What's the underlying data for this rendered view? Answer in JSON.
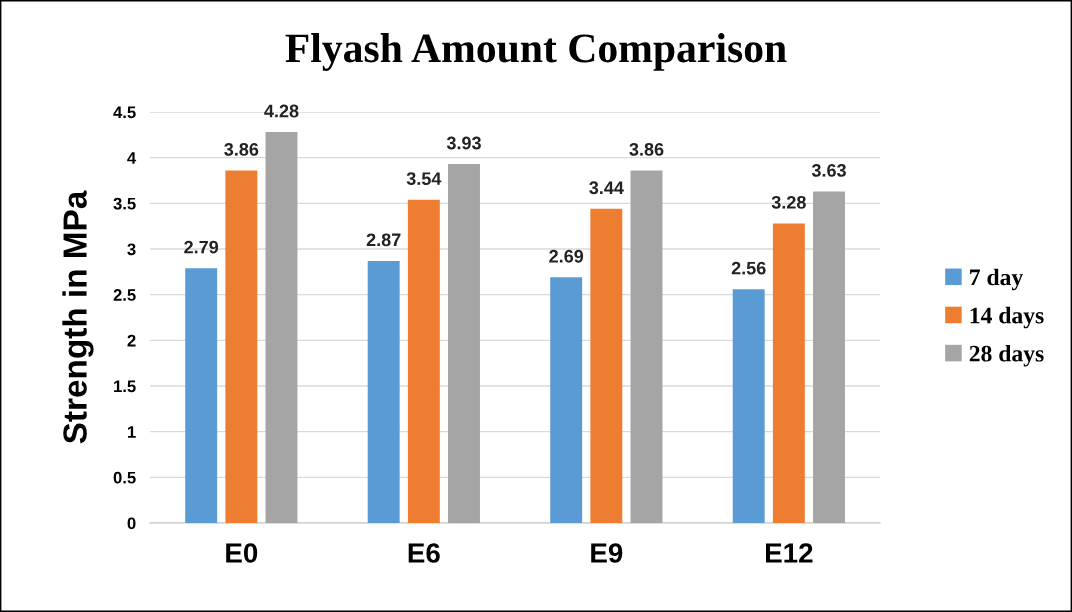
{
  "chart_data": {
    "type": "bar",
    "title": "Flyash Amount Comparison",
    "ylabel": "Strength in MPa",
    "categories": [
      "E0",
      "E6",
      "E9",
      "E12"
    ],
    "series": [
      {
        "name": "7 day",
        "color": "#5b9bd5",
        "values": [
          2.79,
          2.87,
          2.69,
          2.56
        ]
      },
      {
        "name": "14 days",
        "color": "#ed7d31",
        "values": [
          3.86,
          3.54,
          3.44,
          3.28
        ]
      },
      {
        "name": "28 days",
        "color": "#a5a5a5",
        "values": [
          4.28,
          3.93,
          3.86,
          3.63
        ]
      }
    ],
    "ylim": [
      0,
      4.5
    ],
    "yticks": [
      0,
      0.5,
      1,
      1.5,
      2,
      2.5,
      3,
      3.5,
      4,
      4.5
    ],
    "grid": "y",
    "legend": "right",
    "data_labels": true
  }
}
